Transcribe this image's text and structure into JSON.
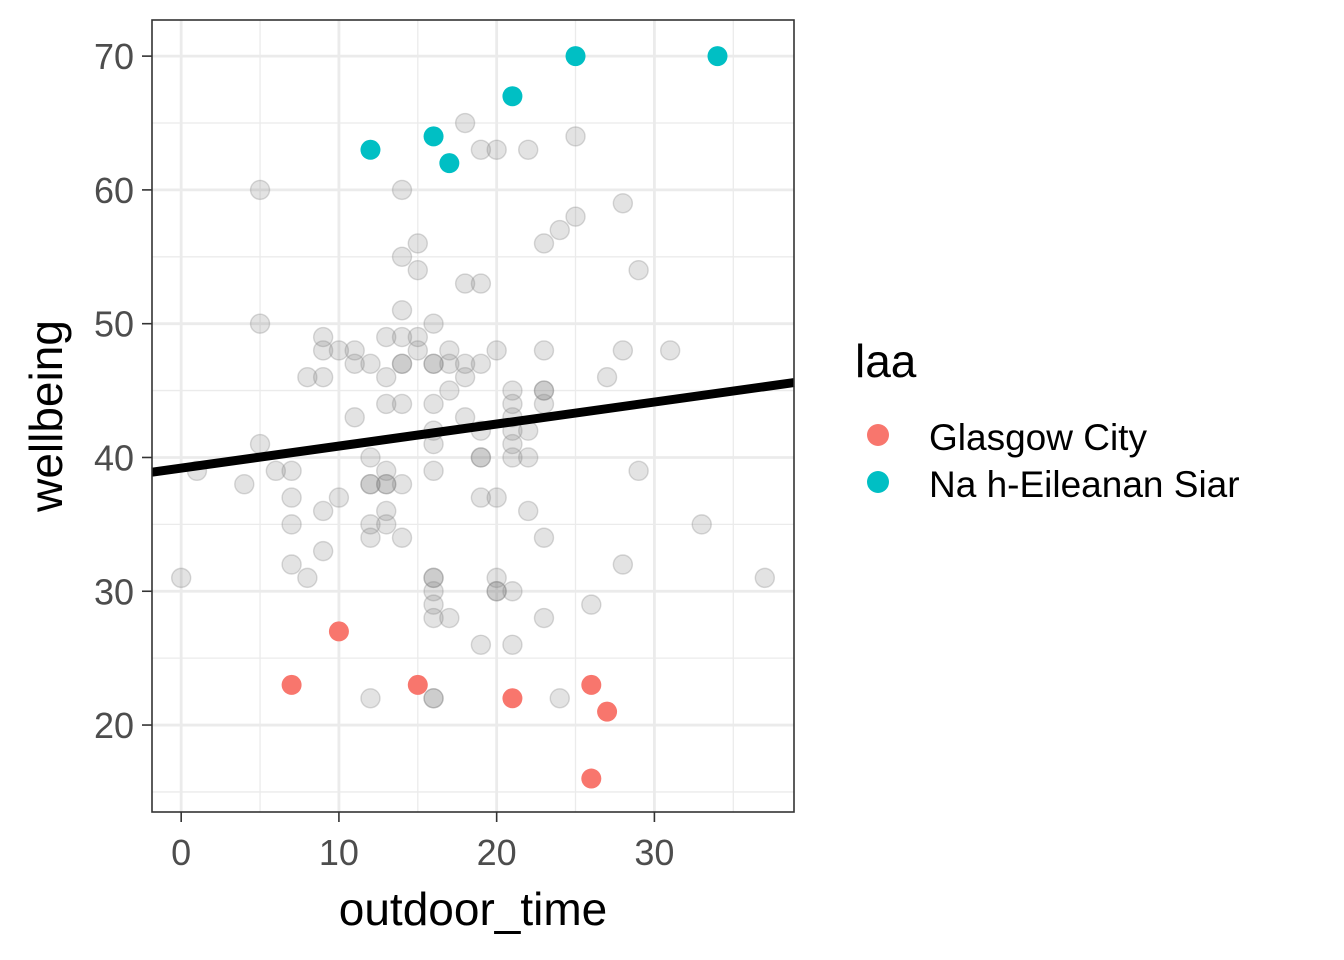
{
  "chart_data": {
    "type": "scatter",
    "xlabel": "outdoor_time",
    "ylabel": "wellbeing",
    "xlim": [
      -1.85,
      38.85
    ],
    "ylim": [
      13.5,
      72.7
    ],
    "x_ticks": [
      0,
      10,
      20,
      30
    ],
    "y_ticks": [
      20,
      30,
      40,
      50,
      60,
      70
    ],
    "grid": true,
    "legend": {
      "title": "laa",
      "position": "right",
      "entries": [
        {
          "name": "Glasgow City",
          "color": "#F8766D"
        },
        {
          "name": "Na h-Eileanan Siar",
          "color": "#00BFC4"
        }
      ]
    },
    "trend_line": {
      "x": [
        -1.85,
        38.85
      ],
      "y": [
        38.9,
        45.6
      ],
      "color": "#000000"
    },
    "background_points": {
      "color": "#808080",
      "x": [
        0,
        1,
        4,
        5,
        5,
        5,
        6,
        7,
        7,
        7,
        7,
        8,
        8,
        9,
        9,
        9,
        9,
        9,
        10,
        10,
        11,
        11,
        11,
        12,
        12,
        12,
        12,
        12,
        12,
        13,
        13,
        13,
        13,
        13,
        13,
        13,
        13,
        14,
        14,
        14,
        14,
        14,
        14,
        14,
        14,
        14,
        15,
        15,
        15,
        15,
        16,
        16,
        16,
        16,
        16,
        16,
        16,
        16,
        16,
        16,
        16,
        16,
        16,
        17,
        17,
        17,
        17,
        18,
        18,
        18,
        18,
        18,
        19,
        19,
        19,
        19,
        19,
        19,
        19,
        19,
        20,
        20,
        20,
        20,
        20,
        20,
        21,
        21,
        21,
        21,
        21,
        21,
        21,
        21,
        22,
        22,
        22,
        22,
        23,
        23,
        23,
        23,
        23,
        23,
        23,
        24,
        24,
        25,
        25,
        26,
        27,
        28,
        28,
        28,
        29,
        29,
        31,
        33,
        37,
        12,
        16
      ],
      "y": [
        31,
        39,
        38,
        60,
        50,
        41,
        39,
        39,
        37,
        35,
        32,
        46,
        31,
        49,
        48,
        46,
        36,
        33,
        48,
        37,
        48,
        47,
        43,
        47,
        40,
        38,
        35,
        34,
        22,
        49,
        46,
        44,
        39,
        38,
        36,
        35,
        38,
        60,
        55,
        51,
        49,
        47,
        44,
        38,
        34,
        47,
        54,
        49,
        48,
        56,
        50,
        47,
        47,
        42,
        41,
        39,
        31,
        31,
        30,
        28,
        22,
        22,
        29,
        48,
        45,
        28,
        47,
        65,
        47,
        46,
        43,
        53,
        53,
        47,
        42,
        40,
        40,
        37,
        26,
        63,
        48,
        37,
        31,
        30,
        30,
        63,
        45,
        44,
        43,
        42,
        41,
        40,
        30,
        26,
        63,
        42,
        40,
        36,
        56,
        48,
        45,
        45,
        44,
        34,
        28,
        57,
        22,
        64,
        58,
        29,
        46,
        59,
        48,
        32,
        54,
        39,
        48,
        35,
        31,
        38,
        44
      ]
    },
    "series": [
      {
        "name": "Glasgow City",
        "color": "#F8766D",
        "x": [
          7,
          10,
          15,
          21,
          26,
          26,
          27
        ],
        "y": [
          23,
          27,
          23,
          22,
          23,
          16,
          21
        ]
      },
      {
        "name": "Na h-Eileanan Siar",
        "color": "#00BFC4",
        "x": [
          12,
          16,
          17,
          21,
          25,
          34
        ],
        "y": [
          63,
          64,
          62,
          67,
          70,
          70
        ]
      }
    ]
  }
}
